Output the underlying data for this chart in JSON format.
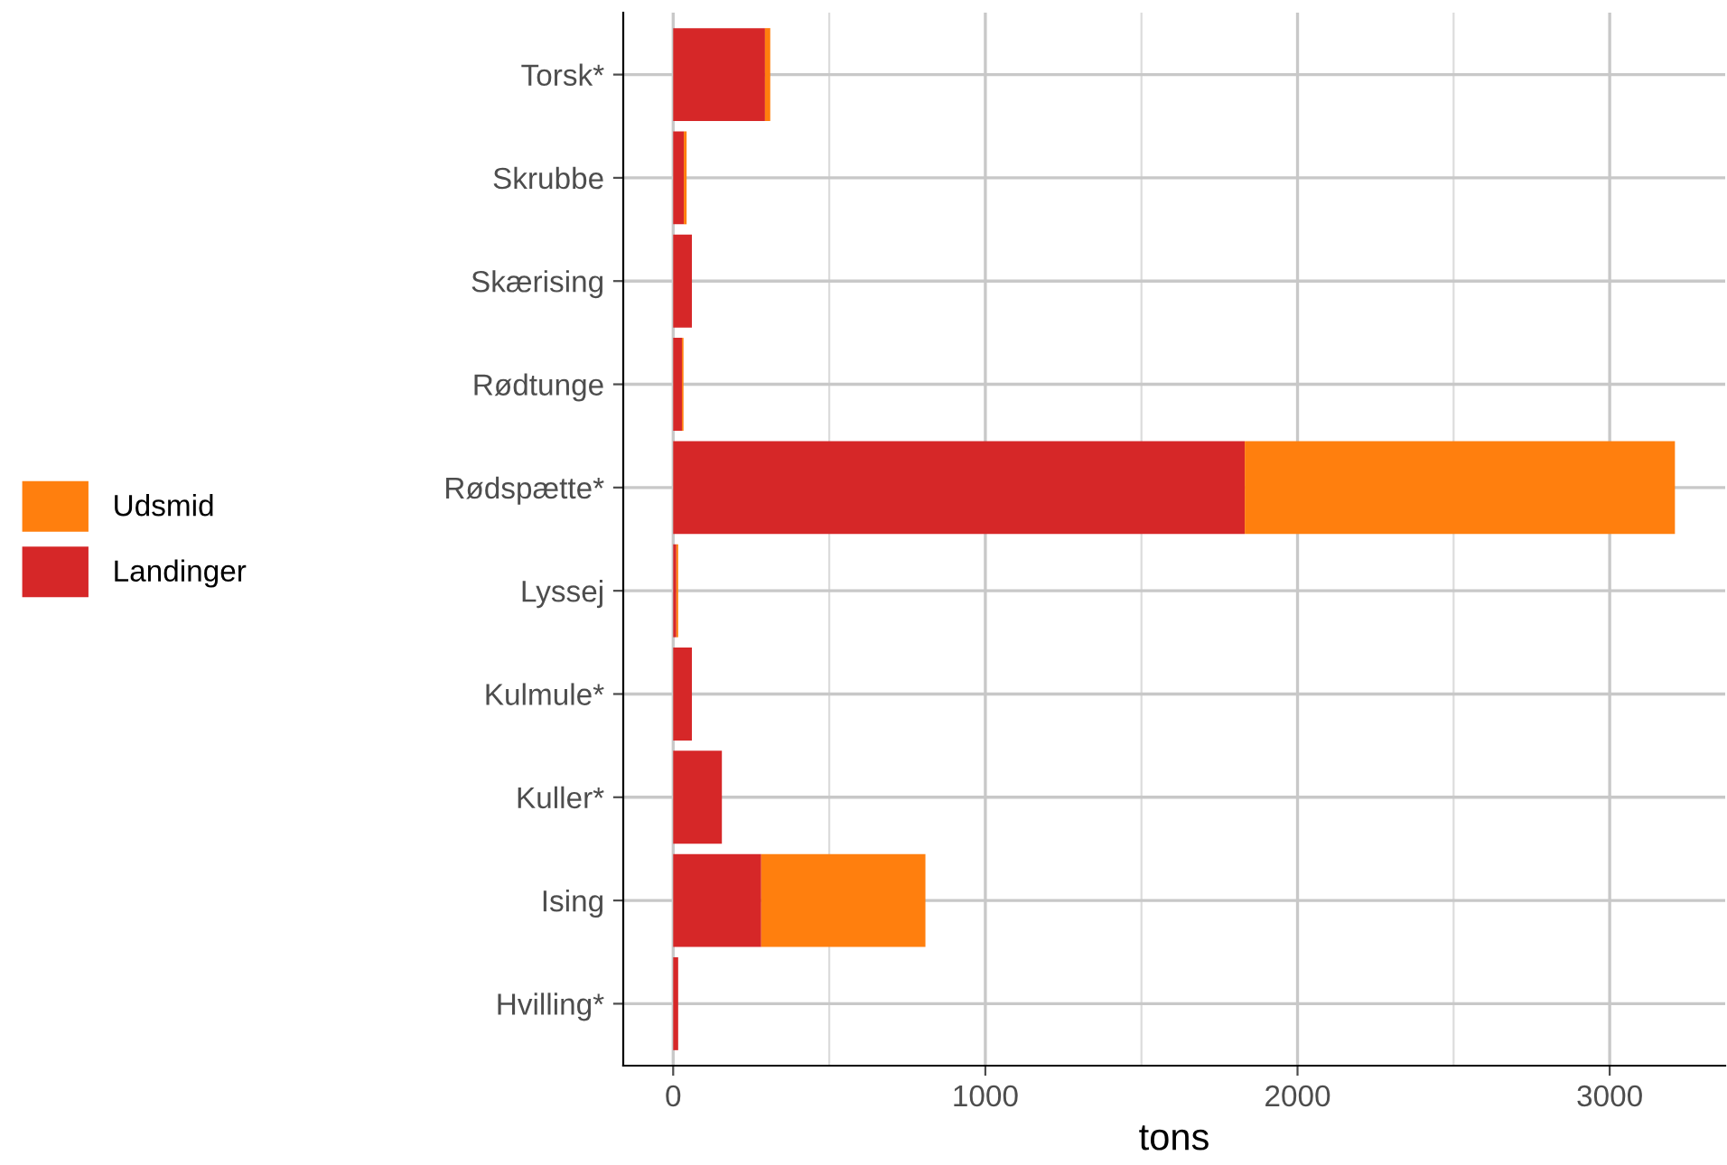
{
  "chart_data": {
    "type": "bar",
    "orientation": "horizontal",
    "stacked": true,
    "xlabel": "tons",
    "categories": [
      "Torsk*",
      "Skrubbe",
      "Skærising",
      "Rødtunge",
      "Rødspætte*",
      "Lyssej",
      "Kulmule*",
      "Kuller*",
      "Ising",
      "Hvilling*"
    ],
    "series": [
      {
        "name": "Landinger",
        "color": "#d62728",
        "values": [
          294,
          34,
          60,
          28,
          1831,
          10,
          60,
          156,
          282,
          16
        ]
      },
      {
        "name": "Udsmid",
        "color": "#ff7f0e",
        "values": [
          17,
          9,
          0,
          5,
          1378,
          6,
          0,
          0,
          526,
          0
        ]
      }
    ],
    "xlim": [
      -160,
      3370
    ],
    "xticks": [
      0,
      1000,
      2000,
      3000
    ],
    "grid": true,
    "legend": "left"
  }
}
